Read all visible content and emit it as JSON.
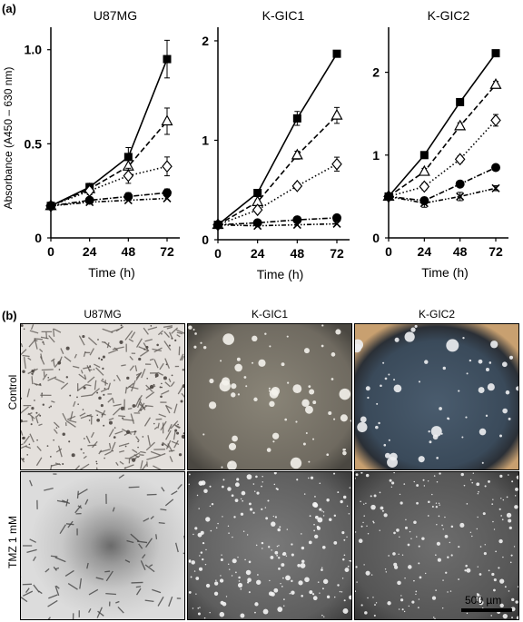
{
  "panel_a": {
    "label": "(a)",
    "ylabel": "Absorbance (A450 – 630 nm)",
    "xlabel": "Time (h)"
  },
  "panel_b": {
    "label": "(b)",
    "columns": [
      "U87MG",
      "K-GIC1",
      "K-GIC2"
    ],
    "rows": [
      "Control",
      "TMZ 1 mM"
    ],
    "scale_bar": "500 µm"
  },
  "chart_data": [
    {
      "type": "line",
      "title": "U87MG",
      "xlabel": "Time (h)",
      "ylabel": "Absorbance (A450 – 630 nm)",
      "x": [
        0,
        24,
        48,
        72
      ],
      "xlim": [
        0,
        72
      ],
      "ylim": [
        0,
        1.1
      ],
      "yticks": [
        0,
        0.5,
        1.0
      ],
      "ytick_labels": [
        "0",
        "0.5",
        "1.0"
      ],
      "series": [
        {
          "marker": "square-filled",
          "line": "solid",
          "values": [
            0.17,
            0.27,
            0.43,
            0.95
          ],
          "errors": [
            0.02,
            0.02,
            0.05,
            0.1
          ]
        },
        {
          "marker": "triangle-open",
          "line": "dashed",
          "values": [
            0.17,
            0.26,
            0.38,
            0.62
          ],
          "errors": [
            0.02,
            0.02,
            0.04,
            0.07
          ]
        },
        {
          "marker": "diamond-open",
          "line": "dotted",
          "values": [
            0.17,
            0.25,
            0.33,
            0.38
          ],
          "errors": [
            0.02,
            0.02,
            0.04,
            0.05
          ]
        },
        {
          "marker": "circle-filled",
          "line": "dashdot",
          "values": [
            0.17,
            0.2,
            0.22,
            0.24
          ],
          "errors": [
            0.02,
            0.01,
            0.02,
            0.02
          ]
        },
        {
          "marker": "x",
          "line": "dashdotdot",
          "values": [
            0.17,
            0.19,
            0.2,
            0.21
          ],
          "errors": [
            0.01,
            0.01,
            0.01,
            0.01
          ]
        }
      ]
    },
    {
      "type": "line",
      "title": "K-GIC1",
      "xlabel": "Time (h)",
      "ylabel": "",
      "x": [
        0,
        24,
        48,
        72
      ],
      "xlim": [
        0,
        72
      ],
      "ylim": [
        0,
        2.1
      ],
      "yticks": [
        0,
        1,
        2
      ],
      "ytick_labels": [
        "0",
        "1",
        "2"
      ],
      "series": [
        {
          "marker": "square-filled",
          "line": "solid",
          "values": [
            0.15,
            0.47,
            1.22,
            1.87
          ],
          "errors": [
            0.02,
            0.03,
            0.07,
            0.03
          ]
        },
        {
          "marker": "triangle-open",
          "line": "dashed",
          "values": [
            0.15,
            0.38,
            0.85,
            1.25
          ],
          "errors": [
            0.02,
            0.02,
            0.04,
            0.08
          ]
        },
        {
          "marker": "diamond-open",
          "line": "dotted",
          "values": [
            0.15,
            0.3,
            0.54,
            0.76
          ],
          "errors": [
            0.02,
            0.02,
            0.03,
            0.07
          ]
        },
        {
          "marker": "circle-filled",
          "line": "dashdot",
          "values": [
            0.15,
            0.17,
            0.2,
            0.22
          ],
          "errors": [
            0.01,
            0.01,
            0.02,
            0.02
          ]
        },
        {
          "marker": "x",
          "line": "dashdotdot",
          "values": [
            0.15,
            0.14,
            0.15,
            0.16
          ],
          "errors": [
            0.01,
            0.01,
            0.01,
            0.01
          ]
        }
      ]
    },
    {
      "type": "line",
      "title": "K-GIC2",
      "xlabel": "Time (h)",
      "ylabel": "",
      "x": [
        0,
        24,
        48,
        72
      ],
      "xlim": [
        0,
        72
      ],
      "ylim": [
        0,
        2.5
      ],
      "yticks": [
        0,
        1,
        2
      ],
      "ytick_labels": [
        "0",
        "1",
        "2"
      ],
      "series": [
        {
          "marker": "square-filled",
          "line": "solid",
          "values": [
            0.5,
            1.0,
            1.64,
            2.23
          ],
          "errors": [
            0.03,
            0.03,
            0.04,
            0.04
          ]
        },
        {
          "marker": "triangle-open",
          "line": "dashed",
          "values": [
            0.5,
            0.8,
            1.35,
            1.85
          ],
          "errors": [
            0.03,
            0.04,
            0.04,
            0.04
          ]
        },
        {
          "marker": "diamond-open",
          "line": "dotted",
          "values": [
            0.5,
            0.62,
            0.95,
            1.42
          ],
          "errors": [
            0.03,
            0.04,
            0.04,
            0.07
          ]
        },
        {
          "marker": "circle-filled",
          "line": "dashdot",
          "values": [
            0.5,
            0.45,
            0.65,
            0.85
          ],
          "errors": [
            0.03,
            0.04,
            0.03,
            0.03
          ]
        },
        {
          "marker": "x",
          "line": "dashdotdot",
          "values": [
            0.5,
            0.42,
            0.5,
            0.6
          ],
          "errors": [
            0.03,
            0.05,
            0.05,
            0.03
          ]
        }
      ]
    }
  ]
}
